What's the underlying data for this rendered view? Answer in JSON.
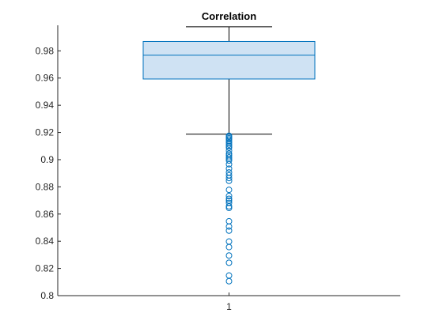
{
  "chart_data": {
    "type": "boxplot",
    "title": "Correlation",
    "xlabel": "",
    "ylabel": "",
    "categories": [
      "1"
    ],
    "y_ticks": [
      "0.8",
      "0.82",
      "0.84",
      "0.86",
      "0.88",
      "0.9",
      "0.92",
      "0.94",
      "0.96",
      "0.98"
    ],
    "ylim": [
      0.8,
      0.9988
    ],
    "grid": false,
    "box": {
      "category": "1",
      "q1": 0.9593,
      "median": 0.9768,
      "q3": 0.9869,
      "whisker_low": 0.9187,
      "whisker_high": 0.9977,
      "outliers": [
        0.9176,
        0.9168,
        0.9158,
        0.9149,
        0.9136,
        0.9124,
        0.9112,
        0.91,
        0.9088,
        0.9066,
        0.9044,
        0.9032,
        0.9017,
        0.9005,
        0.8993,
        0.8966,
        0.8934,
        0.8906,
        0.8885,
        0.8865,
        0.8844,
        0.8778,
        0.8733,
        0.8712,
        0.8698,
        0.8682,
        0.8657,
        0.8645,
        0.8547,
        0.8508,
        0.8478,
        0.8398,
        0.8357,
        0.8295,
        0.8242,
        0.8148,
        0.8106
      ]
    },
    "colors": {
      "box_fill": "#cfe2f3",
      "box_edge": "#0072bd",
      "median": "#0072bd",
      "whisker": "#000000",
      "outlier": "#0072bd",
      "axis": "#262626",
      "text": "#262626",
      "title": "#000000"
    }
  }
}
